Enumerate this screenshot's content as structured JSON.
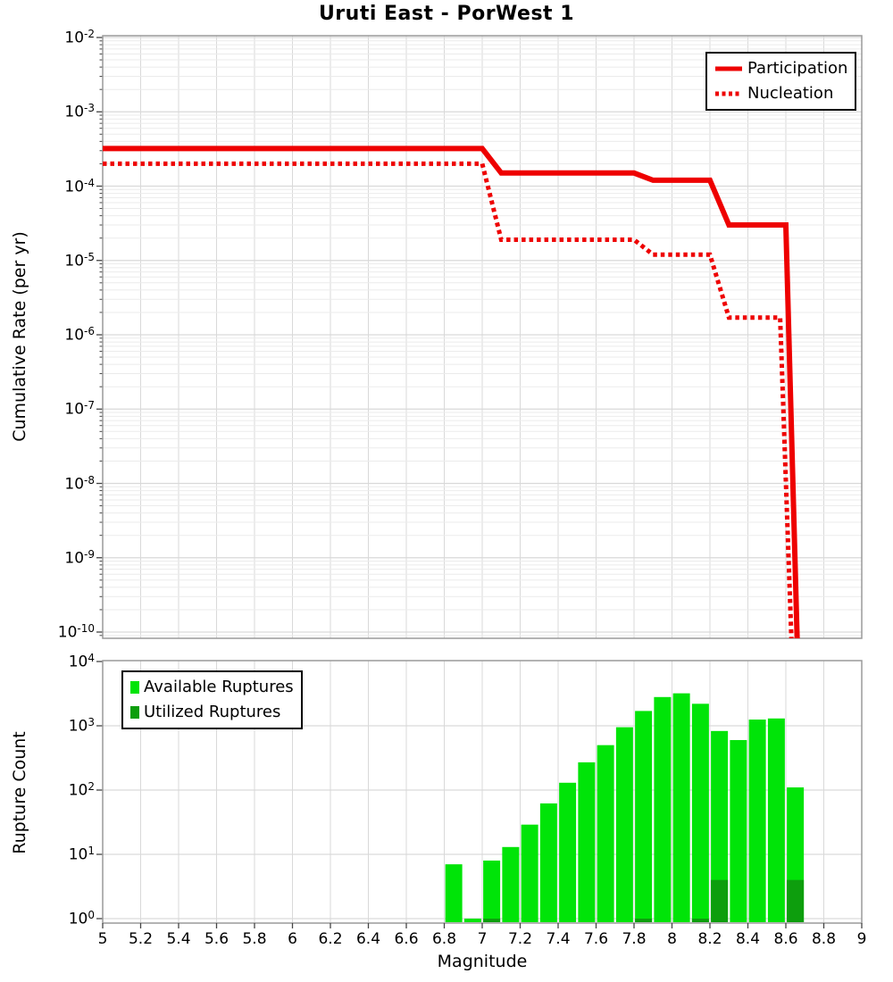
{
  "title": "Uruti East - PorWest 1",
  "colors": {
    "line_red": "#ee0000",
    "available_green": "#00e408",
    "utilized_green": "#0d9e0d",
    "grid_major": "#d9d9d9",
    "grid_minor": "#ebebeb",
    "frame": "#9a9a9a",
    "tick": "#444444"
  },
  "chart_data": [
    {
      "type": "line",
      "title": "Uruti East - PorWest 1",
      "ylabel": "Cumulative Rate (per yr)",
      "xlabel": "",
      "xlim": [
        5,
        9
      ],
      "ylim": [
        1e-10,
        0.01
      ],
      "y_scale": "log",
      "grid": true,
      "legend_position": "top-right",
      "y_tick_exponents": [
        -2,
        -3,
        -4,
        -5,
        -6,
        -7,
        -8,
        -9,
        -10
      ],
      "series": [
        {
          "name": "Participation",
          "style": "solid",
          "color": "#ee0000",
          "points": [
            [
              5.0,
              0.00032
            ],
            [
              7.0,
              0.00032
            ],
            [
              7.1,
              0.00015
            ],
            [
              7.8,
              0.00015
            ],
            [
              7.9,
              0.00012
            ],
            [
              8.2,
              0.00012
            ],
            [
              8.3,
              3e-05
            ],
            [
              8.6,
              3e-05
            ],
            [
              8.66,
              7e-11
            ]
          ]
        },
        {
          "name": "Nucleation",
          "style": "dotted",
          "color": "#ee0000",
          "points": [
            [
              5.0,
              0.0002
            ],
            [
              7.0,
              0.0002
            ],
            [
              7.1,
              1.9e-05
            ],
            [
              7.8,
              1.9e-05
            ],
            [
              7.9,
              1.2e-05
            ],
            [
              8.2,
              1.2e-05
            ],
            [
              8.3,
              1.7e-06
            ],
            [
              8.57,
              1.7e-06
            ],
            [
              8.63,
              7e-11
            ]
          ]
        }
      ]
    },
    {
      "type": "bar",
      "title": "",
      "ylabel": "Rupture Count",
      "xlabel": "Magnitude",
      "xlim": [
        5,
        9
      ],
      "ylim": [
        1,
        10000
      ],
      "y_scale": "log",
      "grid": true,
      "legend_position": "top-left",
      "y_tick_exponents": [
        0,
        1,
        2,
        3,
        4
      ],
      "x_tick_labels": [
        "5",
        "5.2",
        "5.4",
        "5.6",
        "5.8",
        "6",
        "6.2",
        "6.4",
        "6.6",
        "6.8",
        "7",
        "7.2",
        "7.4",
        "7.6",
        "7.8",
        "8",
        "8.2",
        "8.4",
        "8.6",
        "8.8",
        "9"
      ],
      "bar_width_mag": 0.09,
      "categories": [
        6.85,
        6.95,
        7.05,
        7.15,
        7.25,
        7.35,
        7.45,
        7.55,
        7.65,
        7.75,
        7.85,
        7.95,
        8.05,
        8.15,
        8.25,
        8.35,
        8.45,
        8.55,
        8.65
      ],
      "series": [
        {
          "name": "Available Ruptures",
          "color": "#00e408",
          "values": [
            7,
            1,
            8,
            13,
            29,
            62,
            130,
            270,
            500,
            950,
            1700,
            2800,
            3200,
            2200,
            830,
            600,
            1250,
            1300,
            110
          ]
        },
        {
          "name": "Utilized Ruptures",
          "color": "#0d9e0d",
          "values": [
            0,
            0,
            1,
            0,
            0,
            0,
            0,
            0,
            0,
            0,
            1,
            0,
            0,
            1,
            4,
            0,
            0,
            0,
            4
          ]
        }
      ]
    }
  ]
}
